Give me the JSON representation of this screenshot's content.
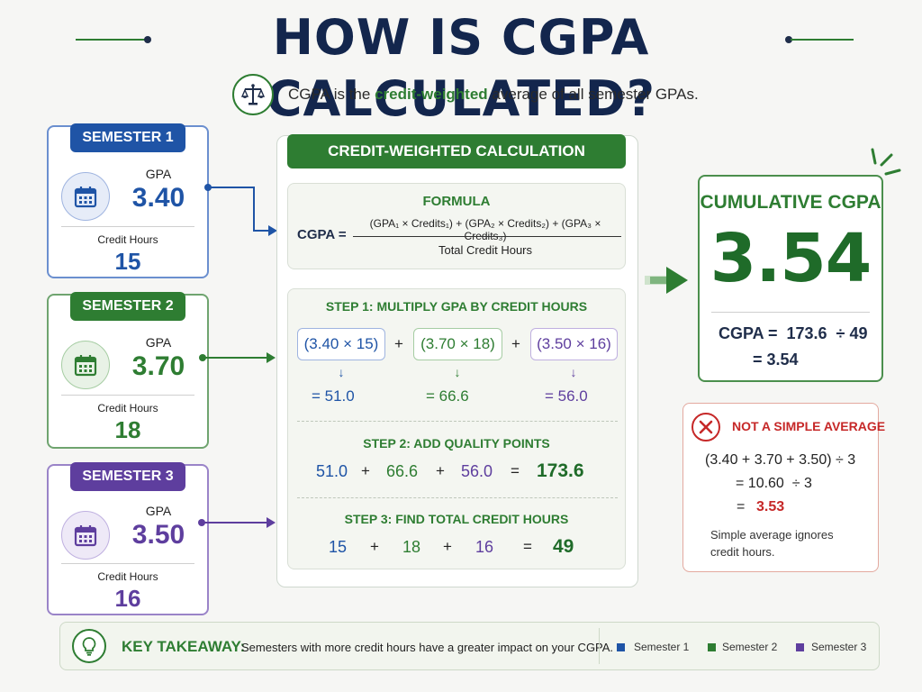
{
  "title": "HOW IS CGPA CALCULATED?",
  "subtitle": {
    "prefix": "CGPA is the ",
    "emphasis": "credit-weighted",
    "suffix": " average of all semester GPAs."
  },
  "icons": {
    "balance": "balance-scale-icon",
    "calendar": "calendar-icon",
    "arrow": "arrow-right-icon",
    "error": "x-circle-icon",
    "bulb": "lightbulb-icon"
  },
  "colors": {
    "sem1": "#1f54a6",
    "sem2": "#2e7d32",
    "sem3": "#5e3e9e",
    "accent": "#2e7d32",
    "error": "#c62828"
  },
  "semesters": [
    {
      "label": "SEMESTER 1",
      "gpa_label": "GPA",
      "gpa": "3.40",
      "credit_label": "Credit Hours",
      "credits": "15"
    },
    {
      "label": "SEMESTER 2",
      "gpa_label": "GPA",
      "gpa": "3.70",
      "credit_label": "Credit Hours",
      "credits": "18"
    },
    {
      "label": "SEMESTER 3",
      "gpa_label": "GPA",
      "gpa": "3.50",
      "credit_label": "Credit Hours",
      "credits": "16"
    }
  ],
  "calc": {
    "header": "CREDIT-WEIGHTED CALCULATION",
    "formula": {
      "title": "FORMULA",
      "lhs": "CGPA =",
      "numerator": "(GPA₁ × Credits₁) + (GPA₂ × Credits₂) + (GPA₃ × Credits₃)",
      "denominator": "Total Credit Hours"
    },
    "step1": {
      "title": "STEP 1: MULTIPLY GPA BY CREDIT HOURS",
      "products": [
        "(3.40 × 15)",
        "(3.70 × 18)",
        "(3.50 × 16)"
      ],
      "plus": "+",
      "down": "↓",
      "results": [
        "= 51.0",
        "= 66.6",
        "= 56.0"
      ]
    },
    "step2": {
      "title": "STEP 2: ADD QUALITY POINTS",
      "terms": [
        "51.0",
        "66.6",
        "56.0"
      ],
      "plus": "+",
      "equals": "=",
      "total": "173.6"
    },
    "step3": {
      "title": "STEP 3: FIND TOTAL CREDIT HOURS",
      "terms": [
        "15",
        "18",
        "16"
      ],
      "plus": "+",
      "equals": "=",
      "total": "49"
    }
  },
  "result": {
    "title": "CUMULATIVE CGPA",
    "value": "3.54",
    "line1": "CGPA =  173.6  ÷ 49",
    "line2": "= 3.54"
  },
  "warning": {
    "title": "NOT A SIMPLE AVERAGE",
    "line1": "(3.40 + 3.70 + 3.50) ÷ 3",
    "line2": "= 10.60  ÷ 3",
    "line3_eq": "=",
    "line3_val": "3.53",
    "note_line1": "Simple average ignores",
    "note_line2": "credit hours."
  },
  "takeaway": {
    "label": "KEY TAKEAWAY:",
    "text": "Semesters with more credit hours have a greater impact on your CGPA.",
    "legend": [
      "Semester 1",
      "Semester 2",
      "Semester 3"
    ]
  }
}
